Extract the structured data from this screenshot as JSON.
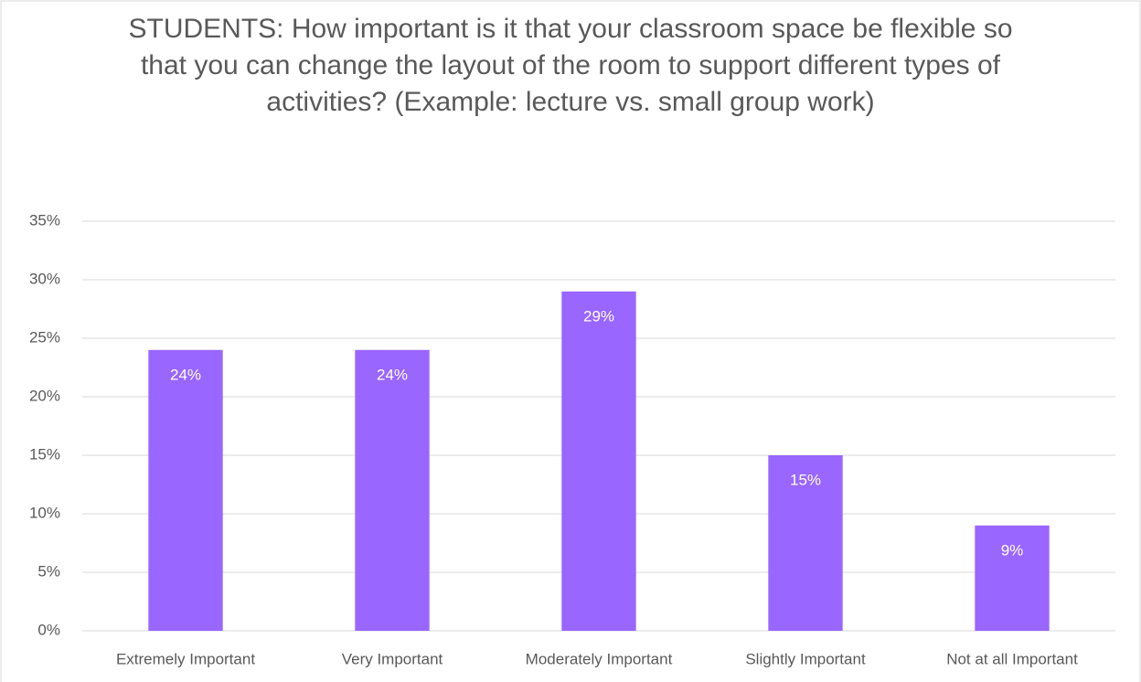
{
  "chart_data": {
    "type": "bar",
    "title": "STUDENTS: How important is it that your classroom space be flexible so that you can change the layout of the room to support different types of activities? (Example: lecture vs. small group work)",
    "categories": [
      "Extremely Important",
      "Very Important",
      "Moderately Important",
      "Slightly Important",
      "Not at all Important"
    ],
    "values": [
      24,
      24,
      29,
      15,
      9
    ],
    "value_labels": [
      "24%",
      "24%",
      "29%",
      "15%",
      "9%"
    ],
    "color": "#9966ff",
    "ylim": [
      0,
      35
    ],
    "yticks": [
      {
        "value": 0,
        "label": "0%"
      },
      {
        "value": 5,
        "label": "5%"
      },
      {
        "value": 10,
        "label": "10%"
      },
      {
        "value": 15,
        "label": "15%"
      },
      {
        "value": 20,
        "label": "20%"
      },
      {
        "value": 25,
        "label": "25%"
      },
      {
        "value": 30,
        "label": "30%"
      },
      {
        "value": 35,
        "label": "35%"
      }
    ],
    "grid": true
  }
}
